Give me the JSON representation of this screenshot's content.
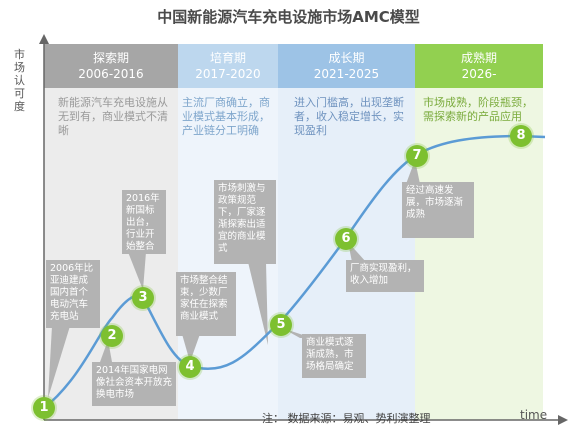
{
  "title": "中国新能源汽车充电设施市场AMC模型",
  "y_axis_label": "市场认可度",
  "x_axis_label": "time",
  "footer": "注：  数据来源：易观、势利演整理",
  "colors": {
    "band1": "#a6a6a6",
    "band2": "#bdd7ee",
    "band3": "#9dc3e6",
    "band4": "#92d050",
    "curve": "#5b9bd5",
    "bubble": "#7dc030",
    "callout": "#b3b3b3"
  },
  "phases": [
    {
      "name": "探索期",
      "years": "2006-2016",
      "desc": "新能源汽车充电设施从无到有，商业模式不清晰"
    },
    {
      "name": "培育期",
      "years": "2017-2020",
      "desc": "主流厂商确立，商业模式基本形成，产业链分工明确"
    },
    {
      "name": "成长期",
      "years": "2021-2025",
      "desc": "进入门槛高，出现垄断者，收入稳定增长，实现盈利"
    },
    {
      "name": "成熟期",
      "years": "2026-",
      "desc": "市场成熟，阶段瓶颈，需探索新的产品应用"
    }
  ],
  "points": [
    {
      "num": "1",
      "text": "2006年比亚迪建成国内首个电动汽车充电站"
    },
    {
      "num": "2",
      "text": "2014年国家电网像社会资本开放充换电市场"
    },
    {
      "num": "3",
      "text": "2016年新国标出台，行业开始整合"
    },
    {
      "num": "4",
      "text": "市场整合结束，少数厂家任在探索商业模式"
    },
    {
      "num": "5",
      "text": "商业模式逐渐成熟，市场格局确定"
    },
    {
      "num": "6",
      "text": "厂商实现盈利，收入增加"
    },
    {
      "num": "7",
      "text": "经过高速发展，市场逐渐成熟"
    },
    {
      "num": "8",
      "text": ""
    },
    {
      "num": "",
      "text": "市场刺激与政策规范下，厂家逐渐探索出适宜的商业模式"
    }
  ]
}
